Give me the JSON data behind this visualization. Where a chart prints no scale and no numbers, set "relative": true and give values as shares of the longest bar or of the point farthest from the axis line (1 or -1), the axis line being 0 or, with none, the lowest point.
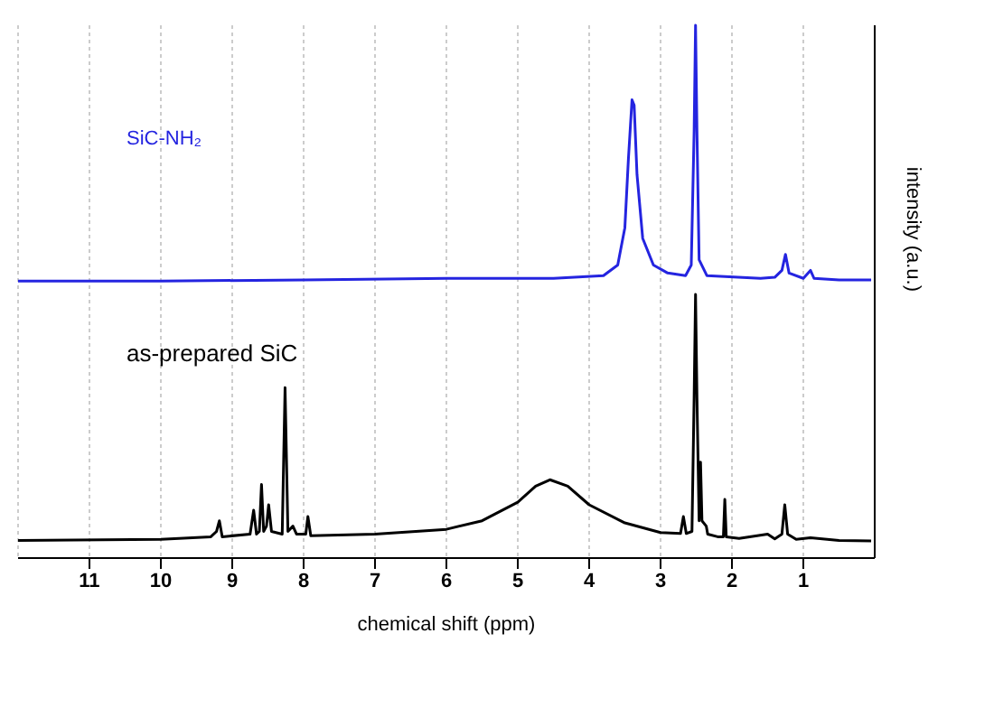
{
  "chart_data": {
    "type": "line",
    "xlabel": "chemical shift (ppm)",
    "ylabel": "intensity (a.u.)",
    "relative": true,
    "grid": "x",
    "xlim": [
      12,
      0
    ],
    "xticks": [
      11,
      10,
      9,
      8,
      7,
      6,
      5,
      4,
      3,
      2,
      1
    ],
    "series": [
      {
        "name": "SiC-NH₂",
        "color": "#2424e0",
        "x": [
          12,
          10,
          8,
          6,
          4.5,
          3.8,
          3.6,
          3.5,
          3.45,
          3.4,
          3.37,
          3.33,
          3.25,
          3.1,
          2.9,
          2.65,
          2.57,
          2.53,
          2.51,
          2.49,
          2.46,
          2.35,
          1.6,
          1.4,
          1.3,
          1.25,
          1.2,
          1.0,
          0.9,
          0.85,
          0.5,
          0.05
        ],
        "values": [
          0.52,
          0.52,
          0.522,
          0.525,
          0.525,
          0.53,
          0.55,
          0.62,
          0.75,
          0.86,
          0.85,
          0.72,
          0.6,
          0.55,
          0.535,
          0.53,
          0.55,
          0.8,
          1.0,
          0.8,
          0.56,
          0.53,
          0.525,
          0.527,
          0.54,
          0.57,
          0.535,
          0.525,
          0.54,
          0.525,
          0.522,
          0.522
        ]
      },
      {
        "name": "as-prepared SiC",
        "color": "#000000",
        "x": [
          12,
          10,
          9.3,
          9.22,
          9.18,
          9.14,
          8.75,
          8.7,
          8.66,
          8.62,
          8.59,
          8.56,
          8.52,
          8.49,
          8.45,
          8.3,
          8.26,
          8.22,
          8.15,
          8.1,
          7.97,
          7.94,
          7.9,
          7,
          6,
          5.5,
          5,
          4.75,
          4.55,
          4.3,
          4,
          3.5,
          3,
          2.72,
          2.68,
          2.64,
          2.56,
          2.53,
          2.51,
          2.49,
          2.46,
          2.44,
          2.42,
          2.36,
          2.34,
          2.2,
          2.12,
          2.1,
          2.08,
          1.9,
          1.5,
          1.4,
          1.3,
          1.26,
          1.22,
          1.1,
          0.9,
          0.5,
          0.05
        ],
        "values": [
          0.033,
          0.035,
          0.04,
          0.05,
          0.07,
          0.04,
          0.045,
          0.09,
          0.045,
          0.05,
          0.138,
          0.05,
          0.06,
          0.1,
          0.05,
          0.045,
          0.32,
          0.05,
          0.06,
          0.045,
          0.045,
          0.078,
          0.042,
          0.045,
          0.054,
          0.07,
          0.105,
          0.135,
          0.147,
          0.135,
          0.1,
          0.066,
          0.048,
          0.046,
          0.078,
          0.046,
          0.05,
          0.3,
          0.495,
          0.3,
          0.07,
          0.18,
          0.07,
          0.06,
          0.045,
          0.04,
          0.04,
          0.11,
          0.04,
          0.037,
          0.045,
          0.036,
          0.045,
          0.1,
          0.045,
          0.035,
          0.038,
          0.033,
          0.032
        ]
      }
    ]
  }
}
